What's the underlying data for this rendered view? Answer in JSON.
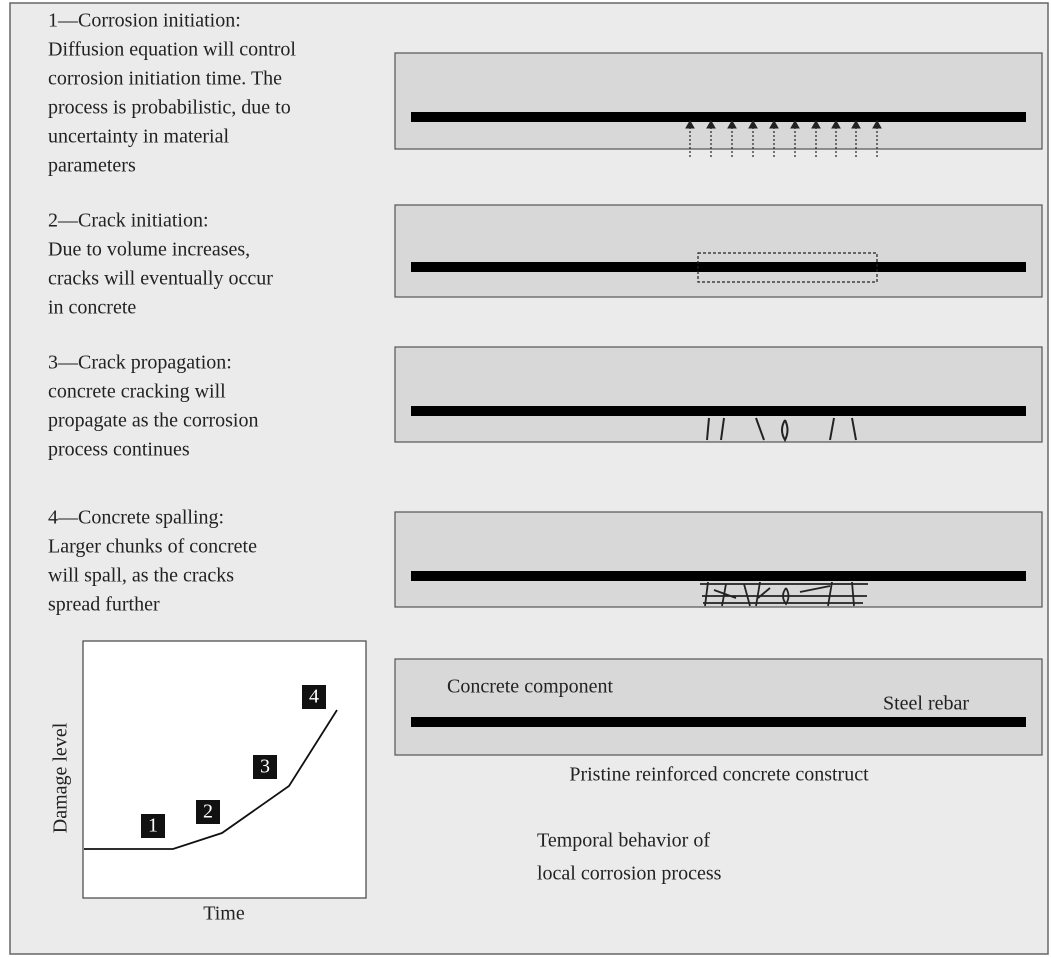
{
  "stages": [
    {
      "lines": [
        "1—Corrosion initiation:",
        "Diffusion equation will control",
        "corrosion initiation time. The",
        "process is probabilistic, due to",
        "uncertainty in material",
        "parameters"
      ]
    },
    {
      "lines": [
        "2—Crack initiation:",
        "Due to volume increases,",
        "cracks will eventually occur",
        "in concrete"
      ]
    },
    {
      "lines": [
        "3—Crack propagation:",
        "concrete cracking will",
        "propagate as the corrosion",
        "process continues"
      ]
    },
    {
      "lines": [
        "4—Concrete spalling:",
        "Larger chunks of concrete",
        "will spall, as the cracks",
        "spread further"
      ]
    }
  ],
  "graph": {
    "y_label": "Damage level",
    "x_label": "Time",
    "steps": [
      "1",
      "2",
      "3",
      "4"
    ]
  },
  "pristine": {
    "component_label": "Concrete component",
    "rebar_label": "Steel rebar",
    "caption": "Pristine reinforced concrete construct"
  },
  "caption": {
    "lines": [
      "Temporal behavior of",
      "local corrosion process"
    ]
  }
}
